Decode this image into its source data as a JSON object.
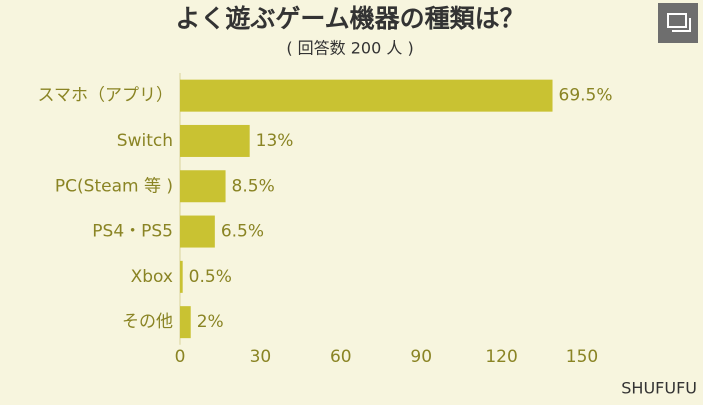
{
  "chart_data": {
    "type": "bar",
    "orientation": "horizontal",
    "title": "よく遊ぶゲーム機器の種類は？",
    "subtitle": "( 回答数 200 人 )",
    "source": "SHUFUFU",
    "categories": [
      "スマホ（アプリ）",
      "Switch",
      "PC(Steam 等 )",
      "PS4・PS5",
      "Xbox",
      "その他"
    ],
    "values": [
      139,
      26,
      17,
      13,
      1,
      4
    ],
    "value_labels": [
      "69.5%",
      "13%",
      "8.5%",
      "6.5%",
      "0.5%",
      "2%"
    ],
    "color": "#c9c232",
    "xlim": [
      0,
      150
    ],
    "xticks": [
      0,
      30,
      60,
      90,
      120,
      150
    ],
    "grid": false
  }
}
